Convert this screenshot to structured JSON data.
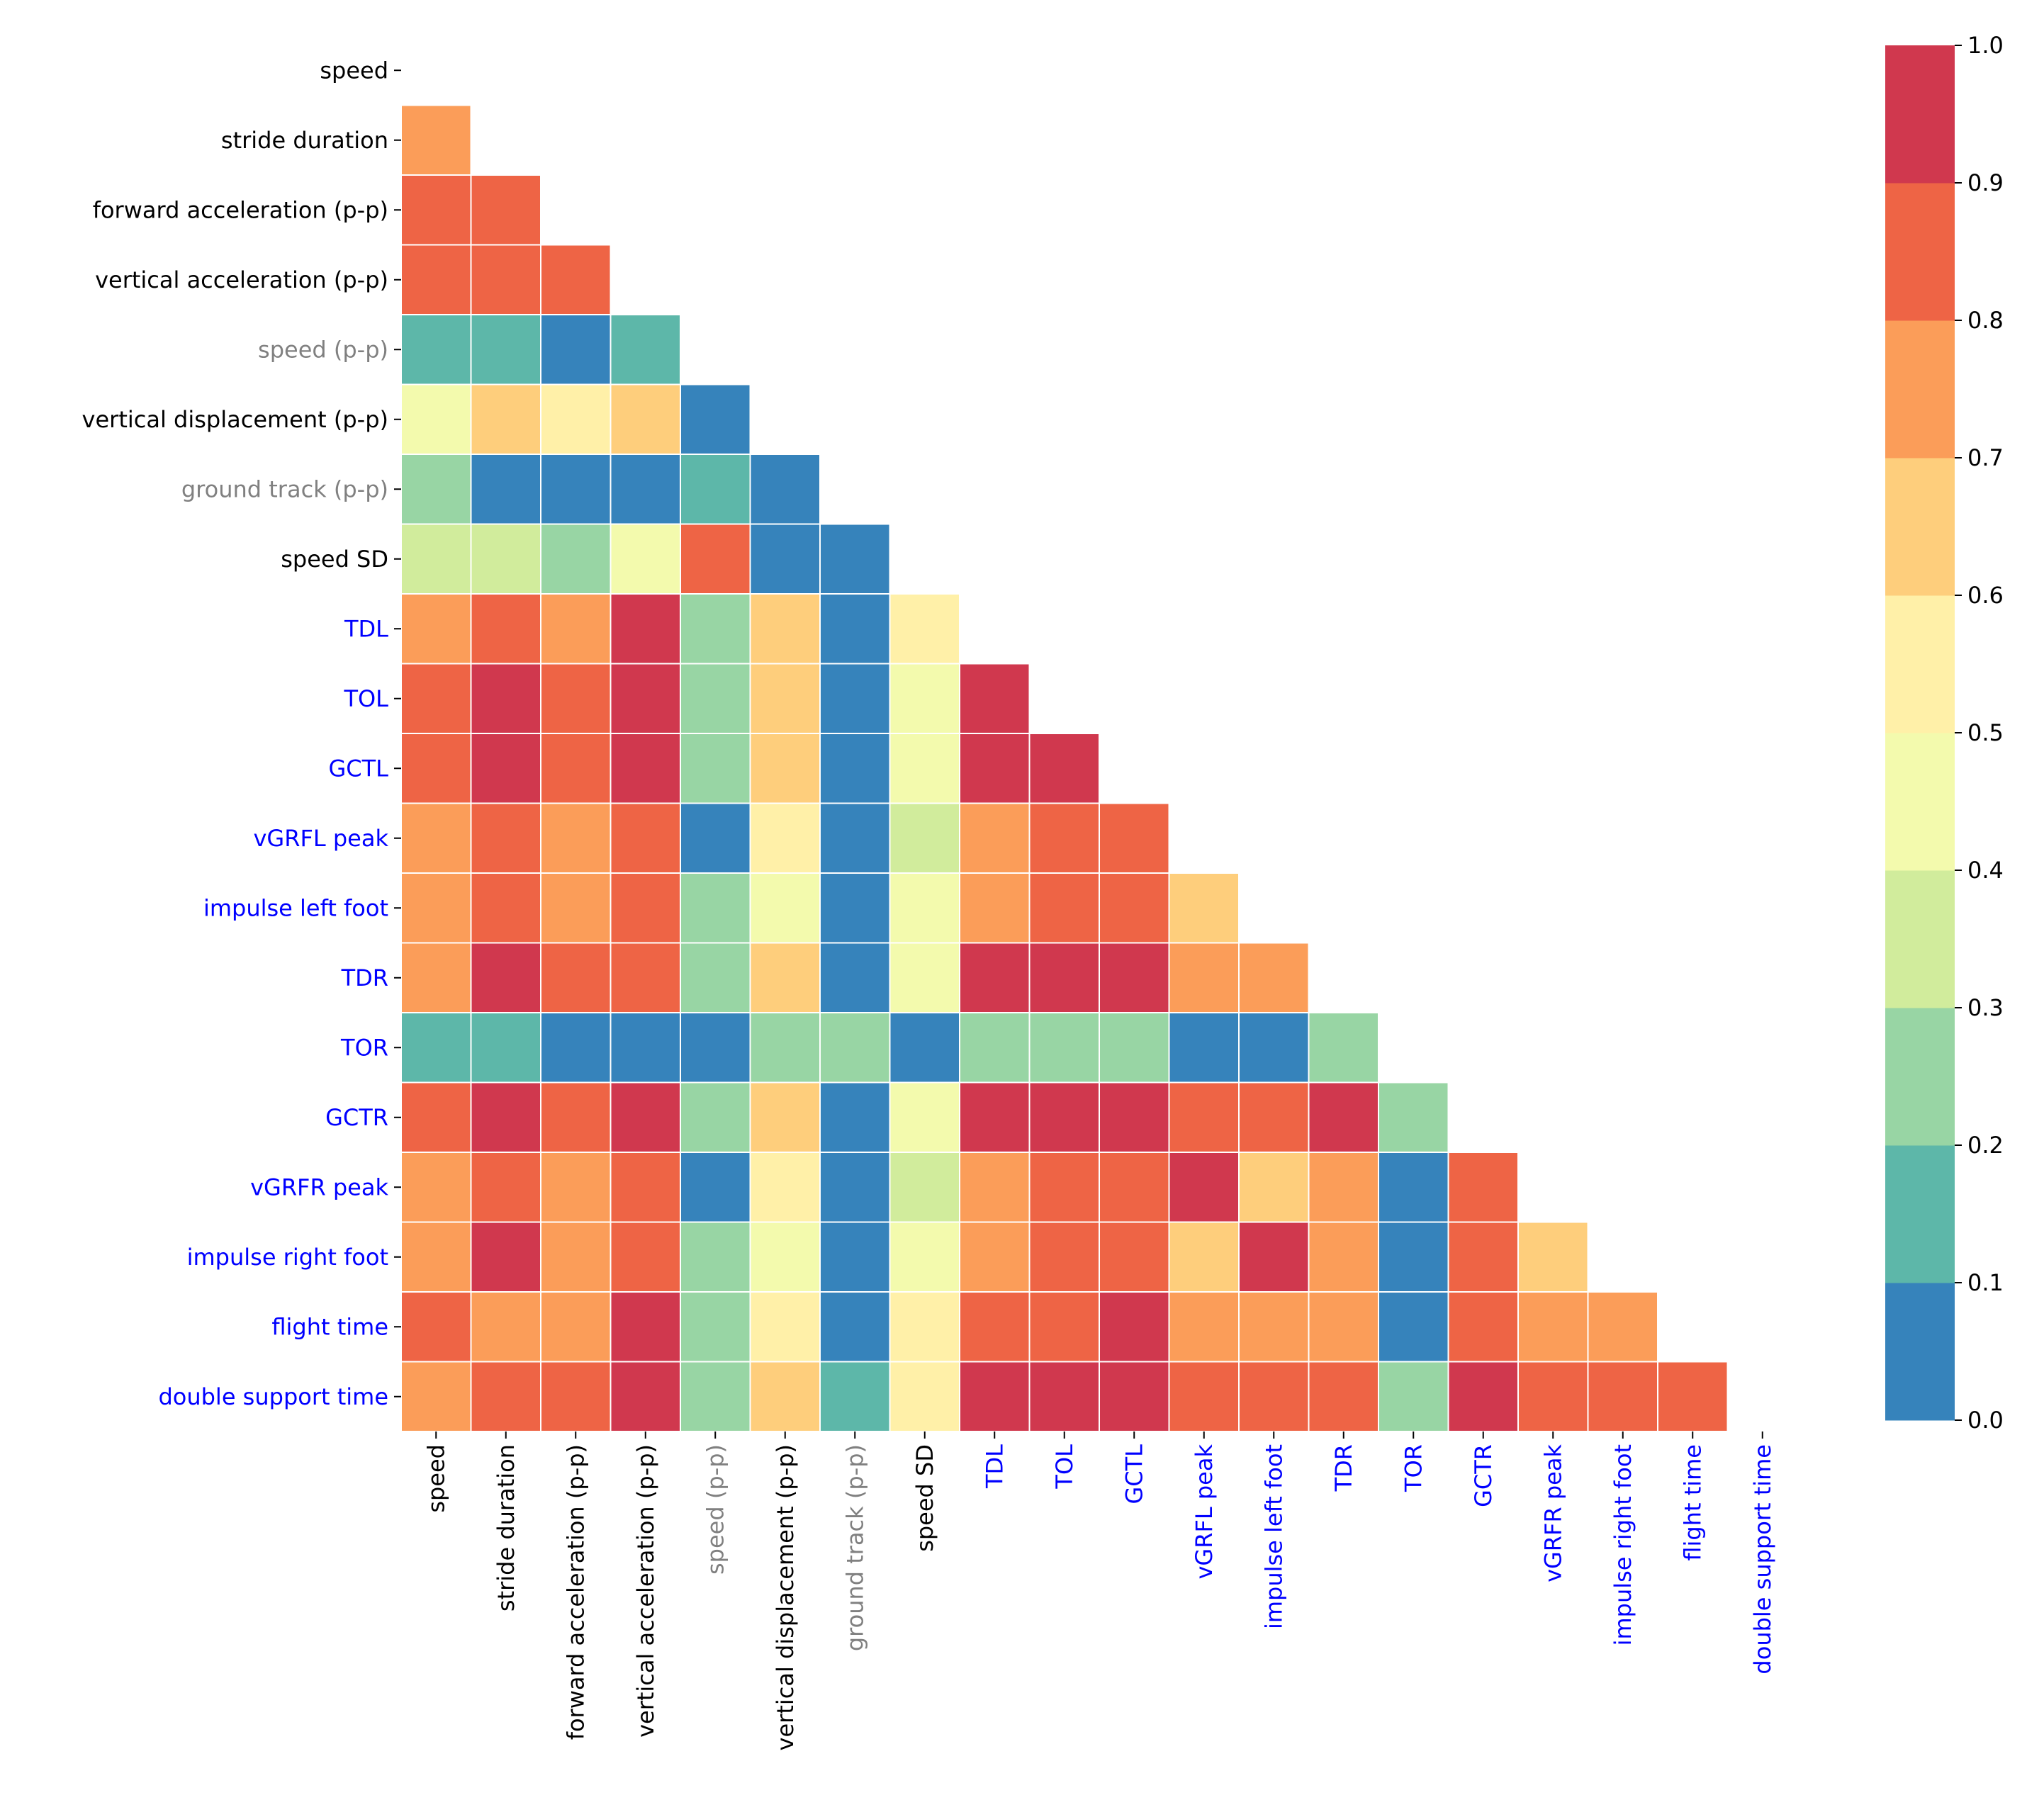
{
  "chart_data": {
    "type": "heatmap",
    "title": "",
    "xlabel": "",
    "ylabel": "",
    "mask": "lower-triangle (diagonal and upper triangle hidden)",
    "labels": [
      {
        "text": "speed",
        "color": "#000000"
      },
      {
        "text": "stride duration",
        "color": "#000000"
      },
      {
        "text": "forward acceleration (p-p)",
        "color": "#000000"
      },
      {
        "text": "vertical acceleration (p-p)",
        "color": "#000000"
      },
      {
        "text": "speed (p-p)",
        "color": "#808080"
      },
      {
        "text": "vertical displacement (p-p)",
        "color": "#000000"
      },
      {
        "text": "ground track (p-p)",
        "color": "#808080"
      },
      {
        "text": "speed SD",
        "color": "#000000"
      },
      {
        "text": "TDL",
        "color": "#0000ff"
      },
      {
        "text": "TOL",
        "color": "#0000ff"
      },
      {
        "text": "GCTL",
        "color": "#0000ff"
      },
      {
        "text": "vGRFL peak",
        "color": "#0000ff"
      },
      {
        "text": "impulse left foot",
        "color": "#0000ff"
      },
      {
        "text": "TDR",
        "color": "#0000ff"
      },
      {
        "text": "TOR",
        "color": "#0000ff"
      },
      {
        "text": "GCTR",
        "color": "#0000ff"
      },
      {
        "text": "vGRFR peak",
        "color": "#0000ff"
      },
      {
        "text": "impulse right foot",
        "color": "#0000ff"
      },
      {
        "text": "flight time",
        "color": "#0000ff"
      },
      {
        "text": "double support time",
        "color": "#0000ff"
      }
    ],
    "values": [
      [],
      [
        0.75
      ],
      [
        0.85,
        0.85
      ],
      [
        0.85,
        0.85,
        0.85
      ],
      [
        0.15,
        0.15,
        0.05,
        0.15
      ],
      [
        0.45,
        0.65,
        0.55,
        0.65,
        0.05
      ],
      [
        0.25,
        0.05,
        0.05,
        0.05,
        0.15,
        0.05
      ],
      [
        0.35,
        0.35,
        0.25,
        0.45,
        0.85,
        0.05,
        0.05
      ],
      [
        0.75,
        0.85,
        0.75,
        0.95,
        0.25,
        0.65,
        0.05,
        0.55
      ],
      [
        0.85,
        0.95,
        0.85,
        0.95,
        0.25,
        0.65,
        0.05,
        0.45,
        0.95
      ],
      [
        0.85,
        0.95,
        0.85,
        0.95,
        0.25,
        0.65,
        0.05,
        0.45,
        0.95,
        0.95
      ],
      [
        0.75,
        0.85,
        0.75,
        0.85,
        0.05,
        0.55,
        0.05,
        0.35,
        0.75,
        0.85,
        0.85
      ],
      [
        0.75,
        0.85,
        0.75,
        0.85,
        0.25,
        0.45,
        0.05,
        0.45,
        0.75,
        0.85,
        0.85,
        0.65
      ],
      [
        0.75,
        0.95,
        0.85,
        0.85,
        0.25,
        0.65,
        0.05,
        0.45,
        0.95,
        0.95,
        0.95,
        0.75,
        0.75
      ],
      [
        0.15,
        0.15,
        0.05,
        0.05,
        0.05,
        0.25,
        0.25,
        0.05,
        0.25,
        0.25,
        0.25,
        0.05,
        0.05,
        0.25
      ],
      [
        0.85,
        0.95,
        0.85,
        0.95,
        0.25,
        0.65,
        0.05,
        0.45,
        0.95,
        0.95,
        0.95,
        0.85,
        0.85,
        0.95,
        0.25
      ],
      [
        0.75,
        0.85,
        0.75,
        0.85,
        0.05,
        0.55,
        0.05,
        0.35,
        0.75,
        0.85,
        0.85,
        0.95,
        0.65,
        0.75,
        0.05,
        0.85
      ],
      [
        0.75,
        0.95,
        0.75,
        0.85,
        0.25,
        0.45,
        0.05,
        0.45,
        0.75,
        0.85,
        0.85,
        0.65,
        0.95,
        0.75,
        0.05,
        0.85,
        0.65
      ],
      [
        0.85,
        0.75,
        0.75,
        0.95,
        0.25,
        0.55,
        0.05,
        0.55,
        0.85,
        0.85,
        0.95,
        0.75,
        0.75,
        0.75,
        0.05,
        0.85,
        0.75,
        0.75
      ],
      [
        0.75,
        0.85,
        0.85,
        0.95,
        0.25,
        0.65,
        0.15,
        0.55,
        0.95,
        0.95,
        0.95,
        0.85,
        0.85,
        0.85,
        0.25,
        0.95,
        0.85,
        0.85,
        0.85
      ]
    ],
    "colorbar": {
      "range": [
        0.0,
        1.0
      ],
      "ticks": [
        "0.0",
        "0.1",
        "0.2",
        "0.3",
        "0.4",
        "0.5",
        "0.6",
        "0.7",
        "0.8",
        "0.9",
        "1.0"
      ],
      "levels": [
        "#3683bb",
        "#5db7a9",
        "#98d5a4",
        "#d1ec9c",
        "#f3faad",
        "#fff0a8",
        "#fece7c",
        "#fb9d59",
        "#ee6445",
        "#d0384e"
      ]
    }
  }
}
